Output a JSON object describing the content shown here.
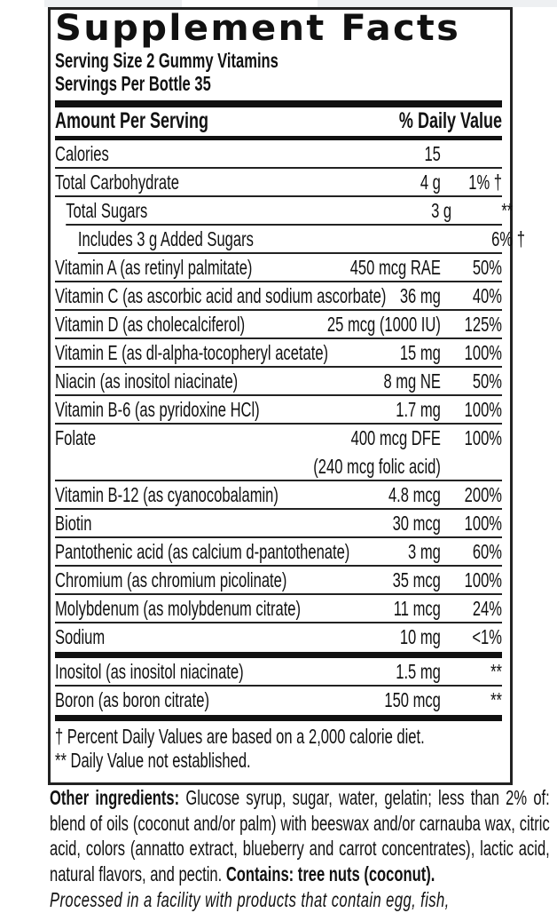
{
  "title": "Supplement Facts",
  "serving_size": "Serving Size 2 Gummy Vitamins",
  "servings_per": "Servings Per Bottle 35",
  "header": {
    "amount": "Amount Per Serving",
    "dv": "% Daily Value"
  },
  "rows_main": [
    {
      "name": "Calories",
      "amount": "15",
      "dv": ""
    },
    {
      "name": "Total Carbohydrate",
      "amount": "4 g",
      "dv": "1% †"
    },
    {
      "name": "Total Sugars",
      "amount": "3 g",
      "dv": "**",
      "indent": 1
    },
    {
      "name": "Includes 3 g Added Sugars",
      "amount": "",
      "dv": "6% †",
      "indent": 2
    },
    {
      "name": "Vitamin A (as retinyl palmitate)",
      "amount": "450 mcg RAE",
      "dv": "50%"
    },
    {
      "name": "Vitamin C (as ascorbic acid and sodium ascorbate)",
      "amount": "36 mg",
      "dv": "40%"
    },
    {
      "name": "Vitamin D (as cholecalciferol)",
      "amount": "25 mcg (1000 IU)",
      "dv": "125%"
    },
    {
      "name": "Vitamin E (as dl-alpha-tocopheryl acetate)",
      "amount": "15 mg",
      "dv": "100%"
    },
    {
      "name": "Niacin (as inositol niacinate)",
      "amount": "8 mg NE",
      "dv": "50%"
    },
    {
      "name": "Vitamin B-6 (as pyridoxine HCl)",
      "amount": "1.7 mg",
      "dv": "100%"
    },
    {
      "name": "Folate",
      "amount": "400 mcg DFE",
      "amount_line2": "(240 mcg folic acid)",
      "dv": "100%"
    },
    {
      "name": "Vitamin B-12 (as cyanocobalamin)",
      "amount": "4.8 mcg",
      "dv": "200%"
    },
    {
      "name": "Biotin",
      "amount": "30 mcg",
      "dv": "100%"
    },
    {
      "name": "Pantothenic acid (as calcium d-pantothenate)",
      "amount": "3 mg",
      "dv": "60%"
    },
    {
      "name": "Chromium (as chromium picolinate)",
      "amount": "35 mcg",
      "dv": "100%"
    },
    {
      "name": "Molybdenum (as molybdenum citrate)",
      "amount": "11 mcg",
      "dv": "24%"
    },
    {
      "name": "Sodium",
      "amount": "10 mg",
      "dv": "<1%"
    }
  ],
  "rows_other": [
    {
      "name": "Inositol (as inositol niacinate)",
      "amount": "1.5 mg",
      "dv": "**"
    },
    {
      "name": "Boron (as boron citrate)",
      "amount": "150 mcg",
      "dv": "**"
    }
  ],
  "footnotes": [
    "† Percent Daily Values are based on a 2,000 calorie diet.",
    "** Daily Value not established."
  ],
  "ingredients": {
    "label": "Other ingredients:",
    "text": " Glucose syrup, sugar, water, gelatin; less than 2% of: blend of oils (coconut and/or palm) with beeswax and/or carnauba wax, citric acid, colors (annatto extract, blueberry and carrot concentrates), lactic acid, natural flavors, and pectin. ",
    "contains": "Contains: tree nuts (coconut).",
    "facility": "Processed in a facility with products that contain egg, fish,"
  }
}
